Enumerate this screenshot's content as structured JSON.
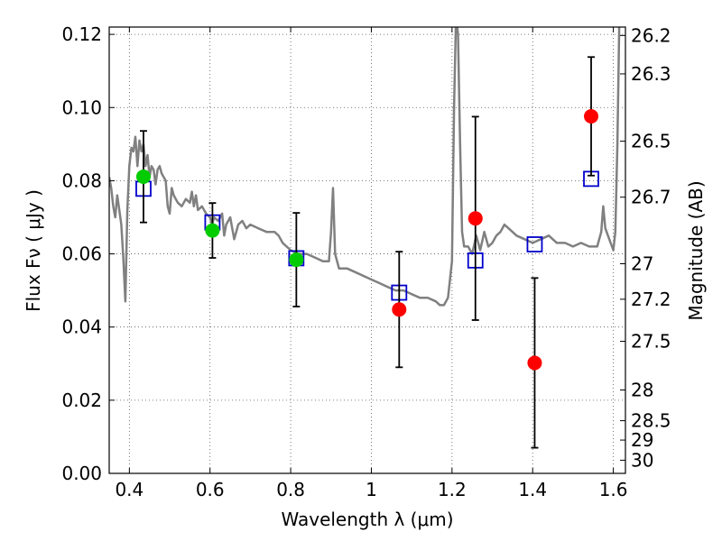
{
  "chart_data": {
    "type": "scatter",
    "title": "",
    "xlabel": "Wavelength  λ (μm)",
    "ylabel": "Flux  Fν  ( μJy )",
    "y2label": "Magnitude (AB)",
    "xlim": [
      0.35,
      1.63
    ],
    "ylim": [
      0.0,
      0.122
    ],
    "grid": true,
    "x_ticks": [
      0.4,
      0.6,
      0.8,
      1.0,
      1.2,
      1.4,
      1.6
    ],
    "x_tick_labels": [
      "0.4",
      "0.6",
      "0.8",
      "1",
      "1.2",
      "1.4",
      "1.6"
    ],
    "y_ticks": [
      0.0,
      0.02,
      0.04,
      0.06,
      0.08,
      0.1,
      0.12
    ],
    "y_tick_labels": [
      "0.00",
      "0.02",
      "0.04",
      "0.06",
      "0.08",
      "0.10",
      "0.12"
    ],
    "y2_ticks": [
      {
        "label": "26.2",
        "flux": 0.1197
      },
      {
        "label": "26.3",
        "flux": 0.1092
      },
      {
        "label": "26.5",
        "flux": 0.0908
      },
      {
        "label": "26.7",
        "flux": 0.0755
      },
      {
        "label": "27",
        "flux": 0.0573
      },
      {
        "label": "27.2",
        "flux": 0.0476
      },
      {
        "label": "27.5",
        "flux": 0.0361
      },
      {
        "label": "28",
        "flux": 0.0228
      },
      {
        "label": "28.5",
        "flux": 0.0144
      },
      {
        "label": "29",
        "flux": 0.0091
      },
      {
        "label": "30",
        "flux": 0.0036
      }
    ],
    "series": [
      {
        "kind": "line",
        "color": "#808080",
        "points": [
          [
            0.35,
            0.081
          ],
          [
            0.355,
            0.078
          ],
          [
            0.36,
            0.073
          ],
          [
            0.365,
            0.07
          ],
          [
            0.37,
            0.076
          ],
          [
            0.375,
            0.072
          ],
          [
            0.38,
            0.068
          ],
          [
            0.385,
            0.059
          ],
          [
            0.39,
            0.047
          ],
          [
            0.395,
            0.072
          ],
          [
            0.4,
            0.084
          ],
          [
            0.405,
            0.089
          ],
          [
            0.41,
            0.088
          ],
          [
            0.415,
            0.092
          ],
          [
            0.42,
            0.084
          ],
          [
            0.425,
            0.091
          ],
          [
            0.43,
            0.088
          ],
          [
            0.435,
            0.09
          ],
          [
            0.44,
            0.084
          ],
          [
            0.445,
            0.087
          ],
          [
            0.45,
            0.081
          ],
          [
            0.455,
            0.084
          ],
          [
            0.46,
            0.083
          ],
          [
            0.465,
            0.079
          ],
          [
            0.47,
            0.083
          ],
          [
            0.475,
            0.084
          ],
          [
            0.48,
            0.082
          ],
          [
            0.49,
            0.08
          ],
          [
            0.495,
            0.073
          ],
          [
            0.5,
            0.071
          ],
          [
            0.505,
            0.078
          ],
          [
            0.51,
            0.076
          ],
          [
            0.52,
            0.074
          ],
          [
            0.53,
            0.073
          ],
          [
            0.54,
            0.075
          ],
          [
            0.55,
            0.074
          ],
          [
            0.555,
            0.077
          ],
          [
            0.56,
            0.073
          ],
          [
            0.565,
            0.076
          ],
          [
            0.57,
            0.072
          ],
          [
            0.58,
            0.073
          ],
          [
            0.59,
            0.071
          ],
          [
            0.6,
            0.07
          ],
          [
            0.605,
            0.068
          ],
          [
            0.61,
            0.07
          ],
          [
            0.62,
            0.069
          ],
          [
            0.63,
            0.071
          ],
          [
            0.635,
            0.065
          ],
          [
            0.64,
            0.068
          ],
          [
            0.65,
            0.07
          ],
          [
            0.655,
            0.067
          ],
          [
            0.66,
            0.064
          ],
          [
            0.67,
            0.068
          ],
          [
            0.68,
            0.069
          ],
          [
            0.69,
            0.067
          ],
          [
            0.7,
            0.068
          ],
          [
            0.72,
            0.067
          ],
          [
            0.74,
            0.066
          ],
          [
            0.76,
            0.066
          ],
          [
            0.77,
            0.065
          ],
          [
            0.78,
            0.063
          ],
          [
            0.8,
            0.061
          ],
          [
            0.82,
            0.06
          ],
          [
            0.84,
            0.06
          ],
          [
            0.86,
            0.059
          ],
          [
            0.88,
            0.058
          ],
          [
            0.895,
            0.058
          ],
          [
            0.9,
            0.066
          ],
          [
            0.905,
            0.078
          ],
          [
            0.91,
            0.06
          ],
          [
            0.92,
            0.056
          ],
          [
            0.94,
            0.056
          ],
          [
            0.96,
            0.055
          ],
          [
            0.98,
            0.054
          ],
          [
            1.0,
            0.053
          ],
          [
            1.02,
            0.052
          ],
          [
            1.04,
            0.051
          ],
          [
            1.06,
            0.05
          ],
          [
            1.08,
            0.05
          ],
          [
            1.1,
            0.049
          ],
          [
            1.12,
            0.048
          ],
          [
            1.14,
            0.048
          ],
          [
            1.16,
            0.047
          ],
          [
            1.17,
            0.046
          ],
          [
            1.18,
            0.046
          ],
          [
            1.19,
            0.048
          ],
          [
            1.2,
            0.058
          ],
          [
            1.205,
            0.1
          ],
          [
            1.21,
            0.125
          ],
          [
            1.215,
            0.12
          ],
          [
            1.22,
            0.09
          ],
          [
            1.225,
            0.066
          ],
          [
            1.23,
            0.062
          ],
          [
            1.24,
            0.062
          ],
          [
            1.25,
            0.06
          ],
          [
            1.26,
            0.065
          ],
          [
            1.27,
            0.061
          ],
          [
            1.28,
            0.066
          ],
          [
            1.29,
            0.062
          ],
          [
            1.3,
            0.063
          ],
          [
            1.31,
            0.065
          ],
          [
            1.32,
            0.066
          ],
          [
            1.33,
            0.068
          ],
          [
            1.34,
            0.067
          ],
          [
            1.35,
            0.066
          ],
          [
            1.36,
            0.065
          ],
          [
            1.38,
            0.064
          ],
          [
            1.4,
            0.063
          ],
          [
            1.42,
            0.064
          ],
          [
            1.44,
            0.065
          ],
          [
            1.46,
            0.063
          ],
          [
            1.48,
            0.063
          ],
          [
            1.5,
            0.062
          ],
          [
            1.52,
            0.063
          ],
          [
            1.54,
            0.062
          ],
          [
            1.56,
            0.062
          ],
          [
            1.57,
            0.066
          ],
          [
            1.575,
            0.073
          ],
          [
            1.58,
            0.067
          ],
          [
            1.59,
            0.064
          ],
          [
            1.6,
            0.061
          ],
          [
            1.605,
            0.066
          ],
          [
            1.61,
            0.09
          ],
          [
            1.615,
            0.125
          ]
        ]
      },
      {
        "kind": "model_boxes",
        "color": "#0000cc",
        "points": [
          {
            "x": 0.435,
            "y": 0.0778
          },
          {
            "x": 0.606,
            "y": 0.0686
          },
          {
            "x": 0.814,
            "y": 0.0588
          },
          {
            "x": 1.069,
            "y": 0.0494
          },
          {
            "x": 1.258,
            "y": 0.0582
          },
          {
            "x": 1.405,
            "y": 0.0626
          },
          {
            "x": 1.545,
            "y": 0.0805
          }
        ]
      },
      {
        "kind": "detections",
        "color": "#00cc00",
        "points": [
          {
            "x": 0.435,
            "y": 0.0811,
            "err": 0.0125
          },
          {
            "x": 0.606,
            "y": 0.0664,
            "err": 0.0075
          },
          {
            "x": 0.814,
            "y": 0.0584,
            "err": 0.0128
          }
        ]
      },
      {
        "kind": "nondetections",
        "color": "#ff0000",
        "points": [
          {
            "x": 1.069,
            "y": 0.0448,
            "err": 0.0158
          },
          {
            "x": 1.258,
            "y": 0.0697,
            "err": 0.0278
          },
          {
            "x": 1.405,
            "y": 0.0302,
            "err": 0.0232
          },
          {
            "x": 1.545,
            "y": 0.0976,
            "err": 0.0162
          }
        ]
      }
    ]
  }
}
